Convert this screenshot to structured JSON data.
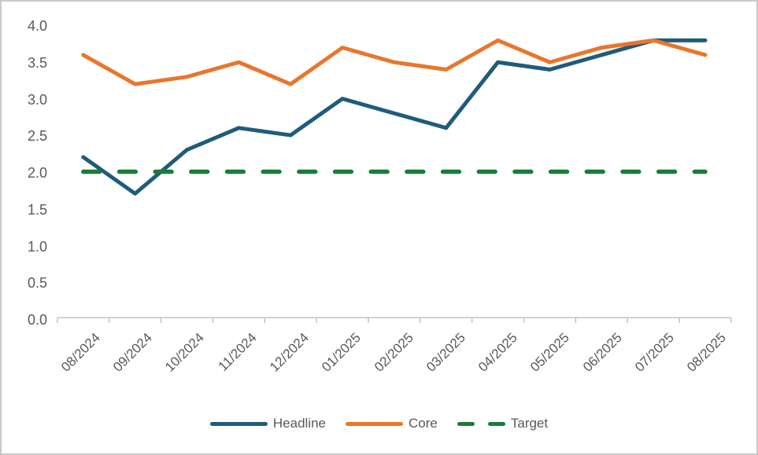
{
  "chart_data": {
    "type": "line",
    "title": "",
    "categories": [
      "08/2024",
      "09/2024",
      "10/2024",
      "11/2024",
      "12/2024",
      "01/2025",
      "02/2025",
      "03/2025",
      "04/2025",
      "05/2025",
      "06/2025",
      "07/2025",
      "08/2025"
    ],
    "series": [
      {
        "name": "Headline",
        "color": "#1f5c7a",
        "style": "solid",
        "values": [
          2.2,
          1.7,
          2.3,
          2.6,
          2.5,
          3.0,
          2.8,
          2.6,
          3.5,
          3.4,
          3.6,
          3.8,
          3.8
        ]
      },
      {
        "name": "Core",
        "color": "#e8762c",
        "style": "solid",
        "values": [
          3.6,
          3.2,
          3.3,
          3.5,
          3.2,
          3.7,
          3.5,
          3.4,
          3.8,
          3.5,
          3.7,
          3.8,
          3.6
        ]
      },
      {
        "name": "Target",
        "color": "#1b7b38",
        "style": "dashed",
        "values": [
          2.0,
          2.0,
          2.0,
          2.0,
          2.0,
          2.0,
          2.0,
          2.0,
          2.0,
          2.0,
          2.0,
          2.0,
          2.0
        ]
      }
    ],
    "y_ticks": [
      "0.0",
      "0.5",
      "1.0",
      "1.5",
      "2.0",
      "2.5",
      "3.0",
      "3.5",
      "4.0"
    ],
    "ylim": [
      0.0,
      4.0
    ],
    "xlabel": "",
    "ylabel": "",
    "grid": "off",
    "legend_position": "bottom",
    "axis_color": "#c3c3c3",
    "tick_label_color": "#595959",
    "frame_border_color": "#c9c9c9",
    "background": "#ffffff"
  }
}
